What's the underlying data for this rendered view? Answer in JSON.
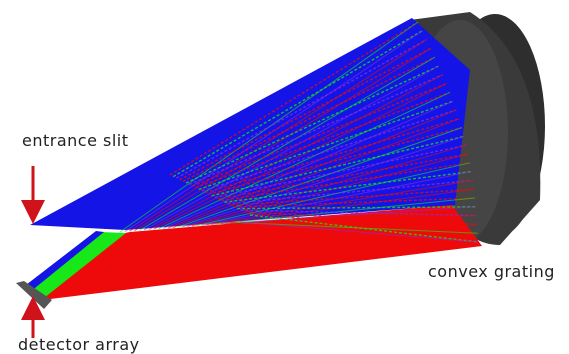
{
  "nodes": [
    {
      "label": "entrance slit"
    },
    {
      "label": "convex grating"
    },
    {
      "label": "detector array"
    }
  ]
}
